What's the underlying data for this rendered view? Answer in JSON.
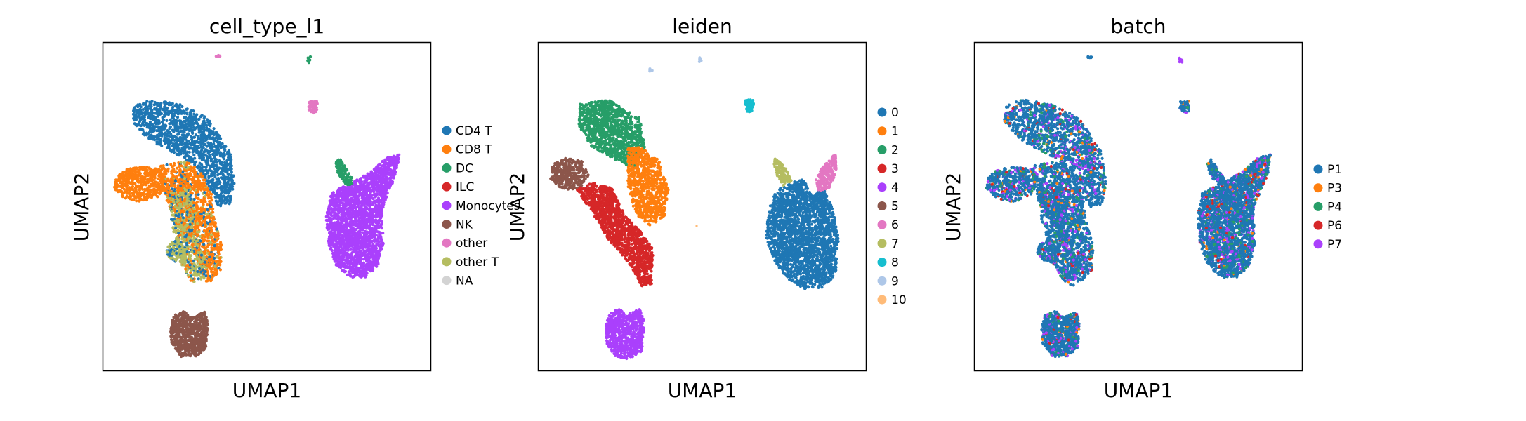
{
  "chart_data": [
    {
      "type": "scatter",
      "title": "cell_type_l1",
      "xlabel": "UMAP1",
      "ylabel": "UMAP2",
      "grid": false,
      "ticks": false,
      "legend": {
        "placement": "right",
        "entries": [
          "CD4 T",
          "CD8 T",
          "DC",
          "ILC",
          "Monocytes",
          "NK",
          "other",
          "other T",
          "NA"
        ]
      },
      "colors": [
        "#1f77b4",
        "#ff7f0e",
        "#279e68",
        "#d62728",
        "#aa40fc",
        "#8c564b",
        "#e377c2",
        "#b5bd61",
        "#d3d3d3"
      ],
      "clusters": [
        {
          "label": "CD4 T",
          "x": 3.8,
          "y": 7.2
        },
        {
          "label": "CD8 T",
          "x": 2.4,
          "y": 5.6
        },
        {
          "label": "DC",
          "x": 12.1,
          "y": 5.8
        },
        {
          "label": "ILC",
          "x": 3.2,
          "y": 4.6
        },
        {
          "label": "Monocytes",
          "x": 12.0,
          "y": 3.8
        },
        {
          "label": "NK",
          "x": 3.5,
          "y": 1.2
        },
        {
          "label": "other",
          "x": 10.2,
          "y": 8.8
        },
        {
          "label": "other T",
          "x": 3.0,
          "y": 5.0
        }
      ]
    },
    {
      "type": "scatter",
      "title": "leiden",
      "xlabel": "UMAP1",
      "ylabel": "UMAP2",
      "grid": false,
      "ticks": false,
      "legend": {
        "placement": "right",
        "entries": [
          "0",
          "1",
          "2",
          "3",
          "4",
          "5",
          "6",
          "7",
          "8",
          "9",
          "10"
        ]
      },
      "colors": [
        "#1f77b4",
        "#ff7f0e",
        "#279e68",
        "#d62728",
        "#aa40fc",
        "#8c564b",
        "#e377c2",
        "#b5bd61",
        "#17becf",
        "#aec7e8",
        "#ffbb78"
      ],
      "clusters": [
        {
          "label": "0",
          "x": 12.0,
          "y": 3.8
        },
        {
          "label": "1",
          "x": 4.2,
          "y": 6.4
        },
        {
          "label": "2",
          "x": 3.0,
          "y": 7.4
        },
        {
          "label": "3",
          "x": 3.0,
          "y": 4.9
        },
        {
          "label": "4",
          "x": 3.5,
          "y": 1.2
        },
        {
          "label": "5",
          "x": 1.2,
          "y": 6.0
        },
        {
          "label": "6",
          "x": 12.8,
          "y": 5.9
        },
        {
          "label": "7",
          "x": 11.3,
          "y": 5.8
        },
        {
          "label": "8",
          "x": 10.3,
          "y": 8.8
        },
        {
          "label": "9",
          "x": 9.7,
          "y": 9.8
        },
        {
          "label": "10",
          "x": 8.4,
          "y": 4.5
        }
      ]
    },
    {
      "type": "scatter",
      "title": "batch",
      "xlabel": "UMAP1",
      "ylabel": "UMAP2",
      "grid": false,
      "ticks": false,
      "legend": {
        "placement": "right",
        "entries": [
          "P1",
          "P3",
          "P4",
          "P6",
          "P7"
        ]
      },
      "colors": [
        "#1f77b4",
        "#ff7f0e",
        "#279e68",
        "#d62728",
        "#aa40fc"
      ]
    }
  ]
}
